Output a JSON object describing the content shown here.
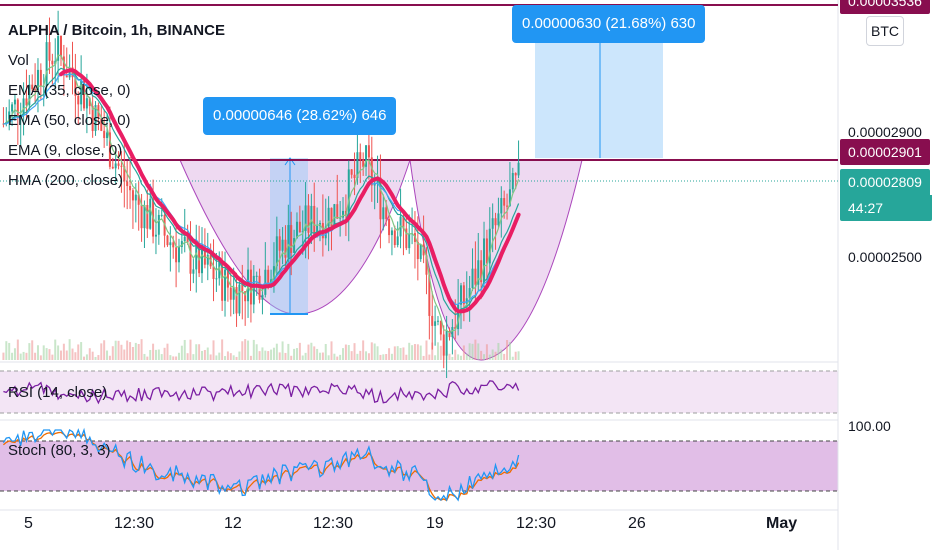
{
  "header": {
    "symbol": "ALPHA / Bitcoin, 1h, BINANCE",
    "indicators": [
      "Vol",
      "EMA (35, close, 0)",
      "EMA (50, close, 0)",
      "EMA (9, close, 0)",
      "HMA (200, close)"
    ]
  },
  "currency_button": "BTC",
  "price_scale": {
    "top_tag": "0.00003536",
    "level_2900": "0.00002900",
    "line_tag": "0.00002901",
    "last_price": "0.00002809",
    "countdown": "44:27",
    "level_2500": "0.00002500",
    "rsi_level": "100.00"
  },
  "measurements": [
    {
      "label": "0.00000646 (28.62%) 646"
    },
    {
      "label": "0.00000630 (21.68%) 630"
    }
  ],
  "panes": {
    "rsi": "RSI (14, close)",
    "stoch": "Stoch (80, 3, 3)"
  },
  "time_axis": [
    "5",
    "12:30",
    "12",
    "12:30",
    "19",
    "12:30",
    "26",
    "May"
  ],
  "colors": {
    "up": "#26a69a",
    "down": "#ef5350",
    "hma": "#e91e63",
    "resistance": "#880e4f",
    "measure": "#2196f3",
    "cup": "#ce93d8",
    "rsi": "#7b1fa2",
    "stoch_k": "#2196f3",
    "stoch_d": "#ef6c00"
  },
  "chart_data": {
    "type": "candlestick",
    "title": "ALPHA / Bitcoin, 1h, BINANCE",
    "x_ticks": [
      "5",
      "12:30",
      "12",
      "12:30",
      "19",
      "12:30",
      "26",
      "May"
    ],
    "y_ticks": [
      2.5e-05,
      2.9e-05
    ],
    "price_path": [
      [
        0,
        3.05e-05
      ],
      [
        0.05,
        3.2e-05
      ],
      [
        0.1,
        3.35e-05
      ],
      [
        0.15,
        3.2e-05
      ],
      [
        0.2,
        2.98e-05
      ],
      [
        0.25,
        2.75e-05
      ],
      [
        0.3,
        2.62e-05
      ],
      [
        0.35,
        2.52e-05
      ],
      [
        0.4,
        2.45e-05
      ],
      [
        0.45,
        2.36e-05
      ],
      [
        0.5,
        2.42e-05
      ],
      [
        0.55,
        2.58e-05
      ],
      [
        0.6,
        2.65e-05
      ],
      [
        0.65,
        2.7e-05
      ],
      [
        0.7,
        2.9e-05
      ],
      [
        0.75,
        2.65e-05
      ],
      [
        0.8,
        2.55e-05
      ],
      [
        0.85,
        2.15e-05
      ],
      [
        0.9,
        2.35e-05
      ],
      [
        0.95,
        2.6e-05
      ],
      [
        1,
        2.809e-05
      ]
    ],
    "resistance_lines": [
      3.536e-05,
      2.901e-05
    ],
    "last_price": 2.809e-05,
    "measurements": [
      {
        "change": 6.46e-06,
        "percent": 28.62,
        "ticks": 646
      },
      {
        "change": 6.3e-06,
        "percent": 21.68,
        "ticks": 630
      }
    ],
    "indicators": [
      "Vol",
      "EMA 35",
      "EMA 50",
      "EMA 9",
      "HMA 200",
      "RSI 14",
      "Stoch 80,3,3"
    ]
  }
}
